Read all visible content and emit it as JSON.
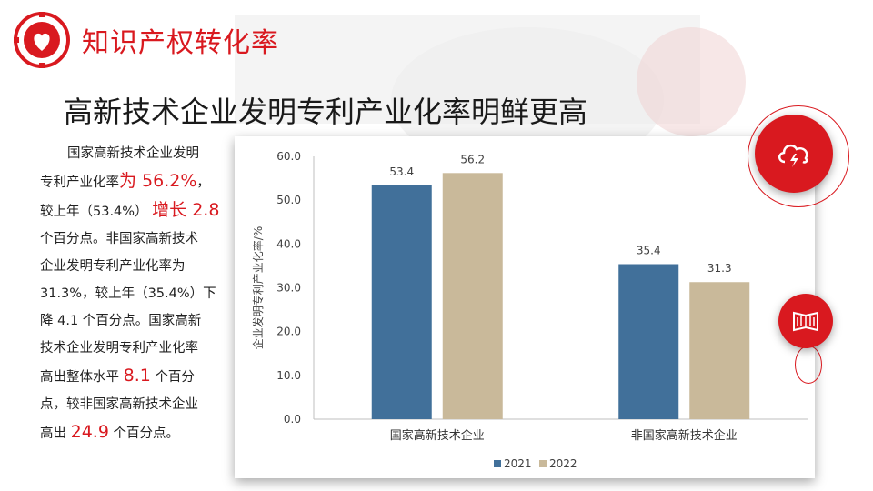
{
  "header": {
    "section_title": "知识产权转化率",
    "main_title": "高新技术企业发明专利产业化率明鲜更高"
  },
  "text_block": {
    "lines": [
      {
        "parts": [
          {
            "t": "国家高新技术企业发明",
            "hl": false
          }
        ]
      },
      {
        "parts": [
          {
            "t": "专利产业化率",
            "hl": false
          },
          {
            "t": "为 56.2%",
            "hl": true
          },
          {
            "t": "，",
            "hl": false
          }
        ]
      },
      {
        "parts": [
          {
            "t": "较上年（53.4%） ",
            "hl": false
          },
          {
            "t": "增长 2.8",
            "hl": true
          }
        ]
      },
      {
        "parts": [
          {
            "t": "个百分点。非国家高新技术",
            "hl": false
          }
        ]
      },
      {
        "parts": [
          {
            "t": "企业发明专利产业化率为",
            "hl": false
          }
        ]
      },
      {
        "parts": [
          {
            "t": "31.3%，较上年（35.4%）下",
            "hl": false
          }
        ]
      },
      {
        "parts": [
          {
            "t": "降 4.1 个百分点。国家高新",
            "hl": false
          }
        ]
      },
      {
        "parts": [
          {
            "t": "技术企业发明专利产业化率",
            "hl": false
          }
        ]
      },
      {
        "parts": [
          {
            "t": "高出整体水平 ",
            "hl": false
          },
          {
            "t": "8.1",
            "hl": true
          },
          {
            "t": " 个百分",
            "hl": false
          }
        ]
      },
      {
        "parts": [
          {
            "t": "点，较非国家高新技术企业",
            "hl": false
          }
        ]
      },
      {
        "parts": [
          {
            "t": "高出 ",
            "hl": false
          },
          {
            "t": "24.9",
            "hl": true
          },
          {
            "t": " 个百分点。",
            "hl": false
          }
        ]
      }
    ]
  },
  "chart_data": {
    "type": "bar",
    "categories": [
      "国家高新技术企业",
      "非国家高新技术企业"
    ],
    "series": [
      {
        "name": "2021",
        "values": [
          53.4,
          35.4
        ],
        "color": "#41709a"
      },
      {
        "name": "2022",
        "values": [
          56.2,
          31.3
        ],
        "color": "#c9b99a"
      }
    ],
    "ylabel": "企业发明专利产业化率/%",
    "ylim": [
      0,
      60
    ],
    "yticks": [
      "0.0",
      "10.0",
      "20.0",
      "30.0",
      "40.0",
      "50.0",
      "60.0"
    ],
    "legend": "bottom",
    "grid": false
  },
  "colors": {
    "accent": "#d9191f",
    "axis": "#bfbfbf",
    "text": "#404040"
  },
  "icons": {
    "logo": "gear-heart-logo-icon",
    "cloud_button": "cloud-lightning-icon",
    "book_button": "open-book-icon"
  }
}
